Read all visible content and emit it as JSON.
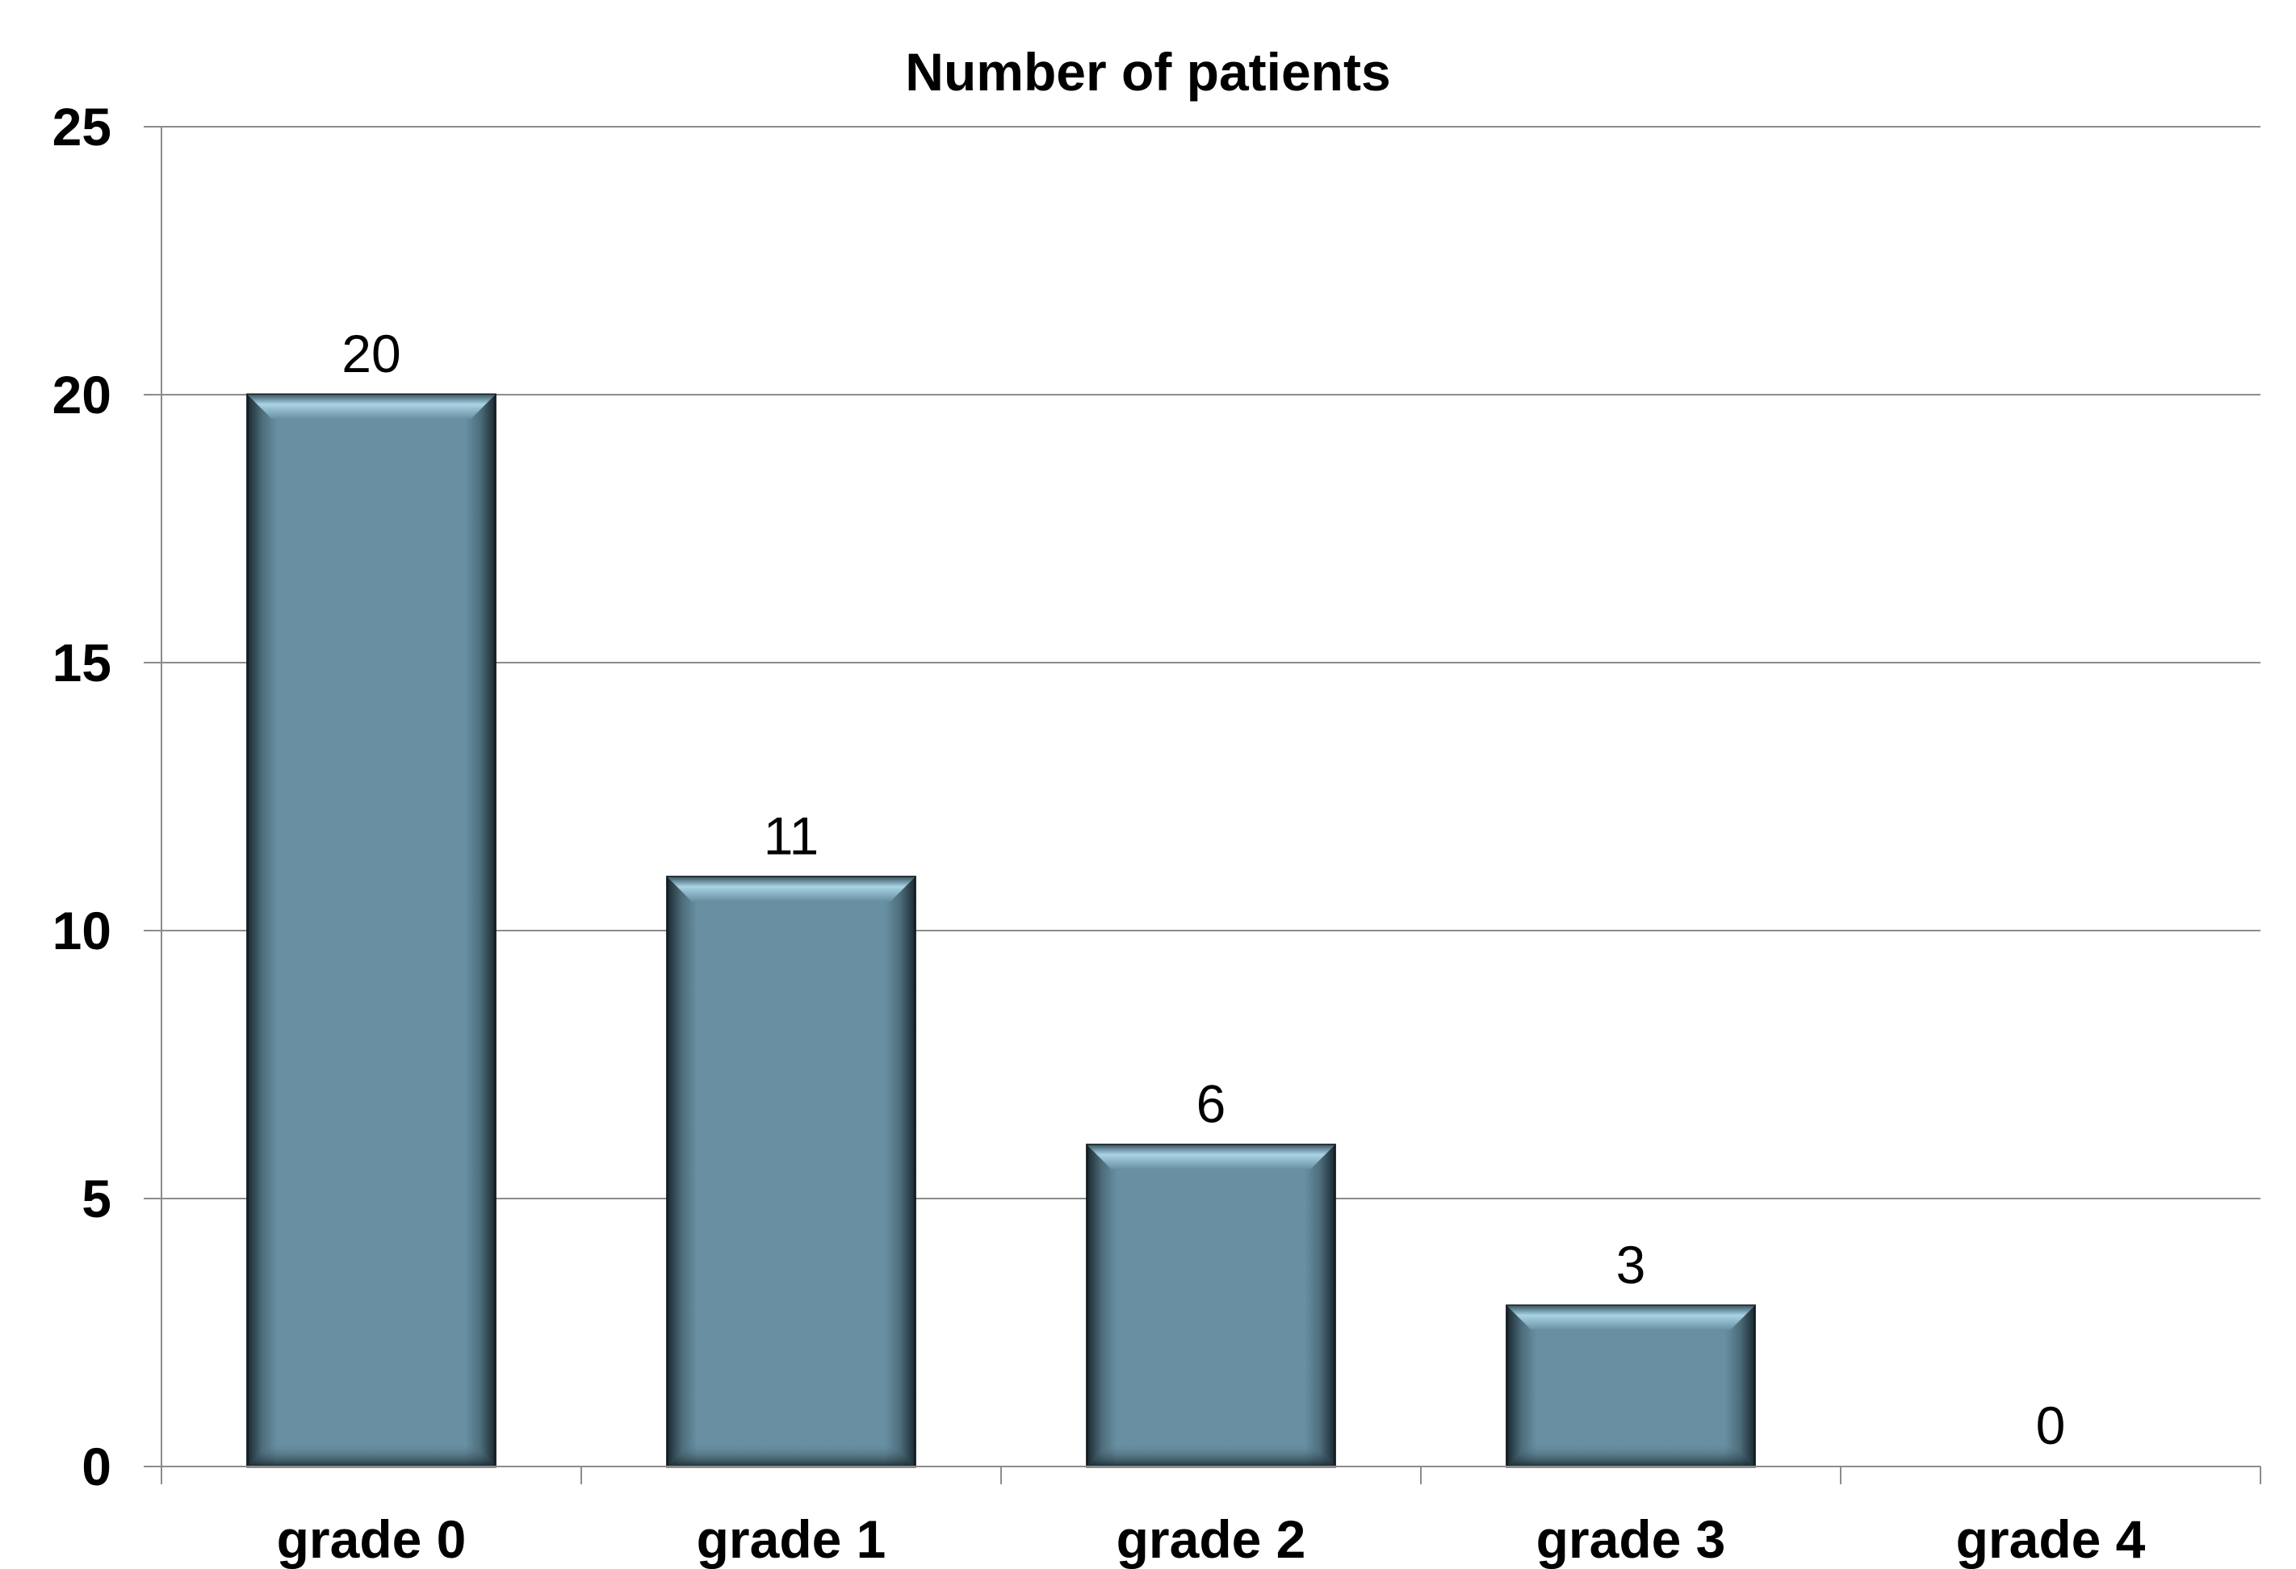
{
  "chart_data": {
    "type": "bar",
    "title": "Number of patients",
    "categories": [
      "grade 0",
      "grade 1",
      "grade 2",
      "grade 3",
      "grade 4"
    ],
    "values": [
      20,
      11,
      6,
      3,
      0
    ],
    "data_labels": [
      "20",
      "11",
      "6",
      "3",
      "0"
    ],
    "ylim": [
      0,
      25
    ],
    "yticks": [
      0,
      5,
      10,
      15,
      20,
      25
    ],
    "xlabel": "",
    "ylabel": "",
    "grid": true,
    "legend": "none",
    "bar_color": "#6890a2"
  }
}
